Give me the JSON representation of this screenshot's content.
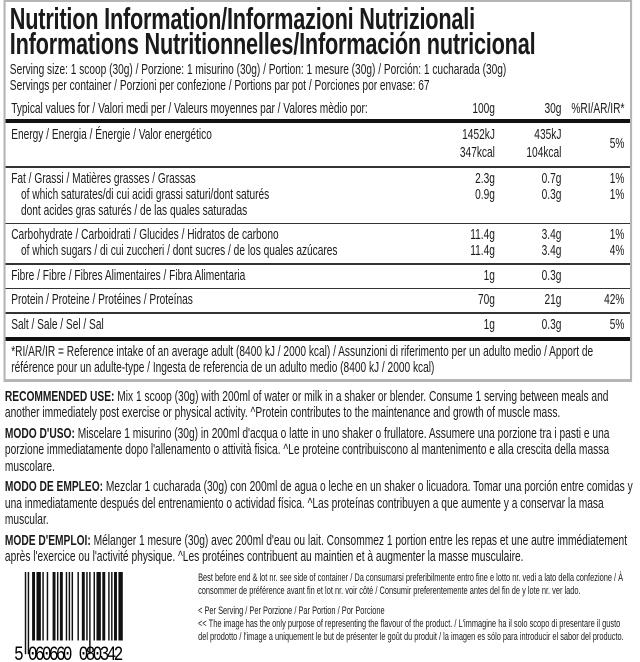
{
  "title": {
    "line1": "Nutrition Information/Informazioni Nutrizionali",
    "line2": "Informations Nutritionnelles/Información nutricional"
  },
  "serving_size": "Serving size: 1 scoop (30g) / Porzione: 1 misurino (30g) / Portion: 1 mesure (30g) / Porción: 1 cucharada (30g)",
  "servings_per_container": "Servings per container / Porzioni per confezione / Portions par pot / Porciones por envase: 67",
  "table": {
    "header": {
      "label": "Typical values for / Valori medi per / Valeurs moyennes par / Valores mèdio por:",
      "col1": "100g",
      "col2": "30g",
      "col3": "%RI/AR/IR*"
    },
    "energy": {
      "label": "Energy / Energia / Énergie / Valor energético",
      "kj100": "1452kJ",
      "kcal100": "347kcal",
      "kj30": "435kJ",
      "kcal30": "104kcal",
      "ri": "5%"
    },
    "fat": {
      "label": "Fat / Grassi / Matières grasses / Grassas",
      "v100": "2.3g",
      "v30": "0.7g",
      "ri": "1%"
    },
    "saturates": {
      "label": "of which saturates/di cui acidi grassi saturi/dont saturés",
      "label2": "dont acides gras saturés / de las quales saturadas",
      "v100": "0.9g",
      "v30": "0.3g",
      "ri": "1%"
    },
    "carbohydrate": {
      "label": "Carbohydrate / Carboidrati / Glucides / Hidratos de carbono",
      "v100": "11.4g",
      "v30": "3.4g",
      "ri": "1%"
    },
    "sugars": {
      "label": "of which sugars / di cui zuccheri / dont sucres / de los quales azúcares",
      "v100": "11.4g",
      "v30": "3.4g",
      "ri": "4%"
    },
    "fibre": {
      "label": "Fibre / Fibre / Fibres Alimentaires / Fibra Alimentaria",
      "v100": "1g",
      "v30": "0.3g",
      "ri": ""
    },
    "protein": {
      "label": "Protein / Proteine / Protéines / Proteínas",
      "v100": "70g",
      "v30": "21g",
      "ri": "42%"
    },
    "salt": {
      "label": "Salt / Sale / Sel / Sal",
      "v100": "1g",
      "v30": "0.3g",
      "ri": "5%"
    }
  },
  "footnote": "*RI/AR/IR = Reference intake of an average adult (8400 kJ / 2000 kcal)  / Assunzioni di riferimento per un adulto medio / Apport de référence pour un adulte-type / Ingesta de referencia de un adulto medio (8400 kJ / 2000 kcal)",
  "usage": [
    {
      "heading": "RECOMMENDED USE:",
      "text": " Mix 1 scoop (30g) with 200ml of water or milk in a shaker or blender. Consume 1 serving between meals and another immediately post exercise or physical activity. ^Protein contributes to the maintenance and growth of muscle mass."
    },
    {
      "heading": "MODO D'USO:",
      "text": " Miscelare 1 misurino (30g) in 200ml d'acqua o latte in uno shaker o frullatore. Assumere una porzione tra i pasti e una porzione immediatamente dopo l'allenamento o attività fisica. ^Le proteine contribuiscono al mantenimento e alla crescita della massa muscolare."
    },
    {
      "heading": "MODO DE EMPLEO:",
      "text": " Mezclar 1 cucharada (30g) con 200ml de agua o leche en un shaker o licuadora. Tomar una porción entre comidas y una inmediatamente después del entrenamiento o actividad física. ^Las proteínas contribuyen a que aumente y a conservar la masa muscular."
    },
    {
      "heading": "MODE D'EMPLOI:",
      "text": " Mélanger 1 mesure (30g) avec 200ml d'eau ou lait. Consommez 1 portion entre les repas et une autre immédiatement après l'exercice ou l'activité physique. ^Les protéines contribuent au maintien et à augmenter la masse musculaire."
    }
  ],
  "barcode": {
    "digits_lead": "5",
    "digits_left": "060660",
    "digits_right": "080342"
  },
  "small_print": {
    "best_before": "Best before end & lot nr. see side of container / Da consumarsi preferibilmente entro fine e lotto nr. vedi a lato della confezione / À consommer de préférence avant fin et lot nr. voir côté / Consumir preferentemente antes del fin de y lote nr. ver lado.",
    "per_serving": "< Per Serving / Per Porzione / Par Portion / Por Porcione",
    "image_note": "<< The image has the only purpose of representing the flavour of the product. / L'immagine ha il solo scopo di presentare il gusto del prodotto / l'image a uniquement le but de présenter le goût du produit / la imagen es sólo para introducir el sabor del producto."
  }
}
